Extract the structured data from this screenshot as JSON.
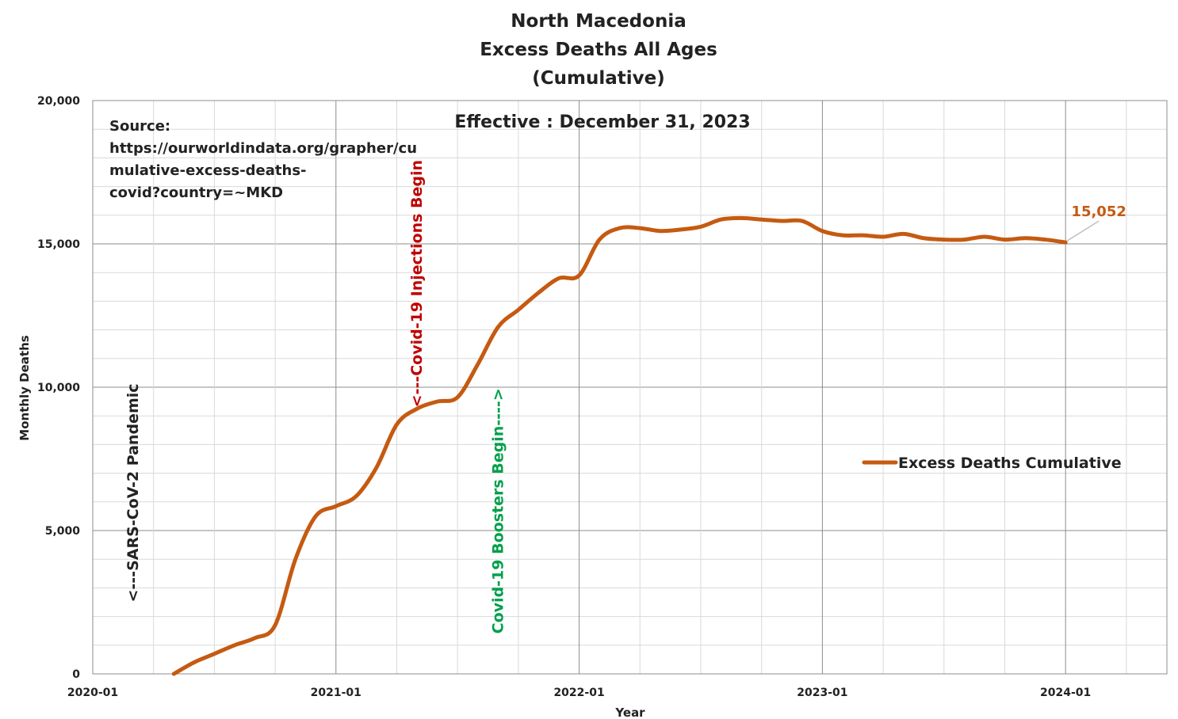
{
  "chart_data": {
    "type": "line",
    "title": [
      "North Macedonia",
      "Excess Deaths All Ages",
      "(Cumulative)"
    ],
    "subtitle": "Effective : December 31, 2023",
    "xlabel": "Year",
    "ylabel": "Monthly Deaths",
    "x_ticks": [
      "2020-01",
      "2021-01",
      "2022-01",
      "2023-01",
      "2024-01"
    ],
    "y_ticks": [
      "0",
      "5,000",
      "10,000",
      "15,000",
      "20,000"
    ],
    "ylim": [
      0,
      20000
    ],
    "xlim": [
      "2020-01",
      "2024-06"
    ],
    "grid": true,
    "legend_position": "right",
    "source_lines": [
      "Source:",
      "https://ourworldindata.org/grapher/cu",
      "mulative-excess-deaths-",
      "covid?country=~MKD"
    ],
    "annotations": [
      {
        "text": "<---SARS-CoV-2 Pandemic",
        "date": "2020-03",
        "y": 2500,
        "color": "#222222"
      },
      {
        "text": "<---Covid-19 Injections Begin",
        "date": "2021-05",
        "y": 9300,
        "color": "#c00000"
      },
      {
        "text": "Covid-19 Boosters Begin---->",
        "date": "2021-09",
        "y": 1400,
        "color": "#00a04a"
      }
    ],
    "series": [
      {
        "name": "Excess Deaths Cumulative",
        "color": "#c55a11",
        "x": [
          "2020-05",
          "2020-06",
          "2020-07",
          "2020-08",
          "2020-09",
          "2020-10",
          "2020-11",
          "2020-12",
          "2021-01",
          "2021-02",
          "2021-03",
          "2021-04",
          "2021-05",
          "2021-06",
          "2021-07",
          "2021-08",
          "2021-09",
          "2021-10",
          "2021-11",
          "2021-12",
          "2022-01",
          "2022-02",
          "2022-03",
          "2022-04",
          "2022-05",
          "2022-06",
          "2022-07",
          "2022-08",
          "2022-09",
          "2022-10",
          "2022-11",
          "2022-12",
          "2023-01",
          "2023-02",
          "2023-03",
          "2023-04",
          "2023-05",
          "2023-06",
          "2023-07",
          "2023-08",
          "2023-09",
          "2023-10",
          "2023-11",
          "2023-12",
          "2024-01"
        ],
        "y": [
          0,
          400,
          700,
          1000,
          1250,
          1700,
          4000,
          5500,
          5850,
          6200,
          7200,
          8700,
          9250,
          9500,
          9650,
          10800,
          12100,
          12700,
          13300,
          13800,
          13900,
          15150,
          15550,
          15550,
          15450,
          15500,
          15600,
          15850,
          15900,
          15850,
          15800,
          15800,
          15450,
          15300,
          15300,
          15250,
          15350,
          15200,
          15150,
          15150,
          15250,
          15150,
          15200,
          15150,
          15052
        ]
      }
    ],
    "data_labels": [
      {
        "series": "Excess Deaths Cumulative",
        "date": "2024-01",
        "text": "15,052",
        "color": "#c55a11"
      }
    ]
  }
}
